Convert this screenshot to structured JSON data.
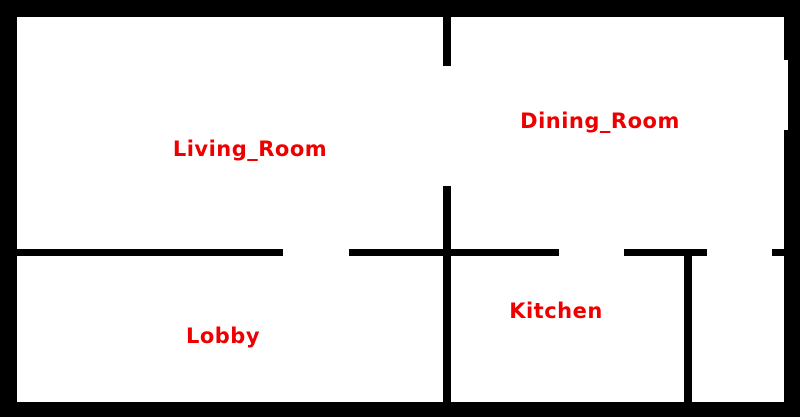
{
  "colors": {
    "wall": "#000000",
    "floor": "#ffffff",
    "label": "#ee0000"
  },
  "rooms": {
    "living_room": "Living_Room",
    "dining_room": "Dining_Room",
    "lobby": "Lobby",
    "kitchen": "Kitchen"
  }
}
